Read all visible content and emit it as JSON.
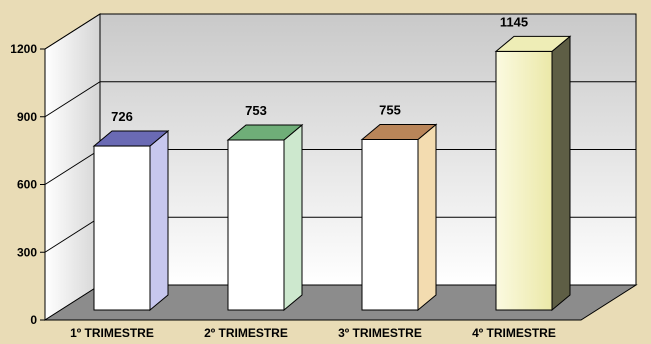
{
  "chart_data": {
    "type": "bar",
    "style": "3d-column",
    "title": "",
    "xlabel": "",
    "ylabel": "",
    "categories": [
      "1º TRIMESTRE",
      "2º TRIMESTRE",
      "3º TRIMESTRE",
      "4º TRIMESTRE"
    ],
    "values": [
      726,
      753,
      755,
      1145
    ],
    "ylim": [
      0,
      1200
    ],
    "yticks": [
      0,
      300,
      600,
      900,
      1200
    ],
    "grid": true,
    "legend": "none",
    "colors": {
      "background": "#e9dcb6",
      "floor": "#8c8c8c",
      "bar_front": [
        "#ffffff",
        "#ffffff",
        "#ffffff",
        "#f6f3c4"
      ],
      "bar_top": [
        "#6a6ab4",
        "#6fae78",
        "#b98559",
        "#eeedb6"
      ],
      "bar_side": [
        "#c7c7ee",
        "#cde8ce",
        "#f3dcb0",
        "#5e5e45"
      ]
    }
  }
}
